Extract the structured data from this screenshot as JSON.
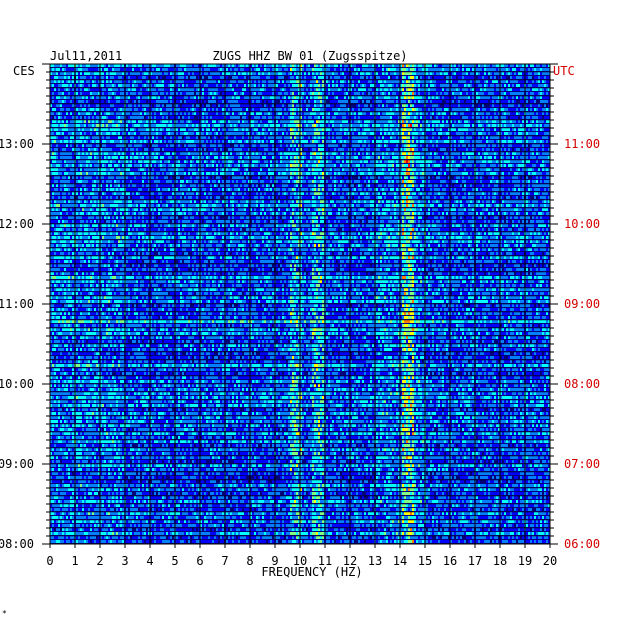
{
  "chart_data": {
    "type": "heatmap",
    "date": "Jul11,2011",
    "title": "ZUGS HHZ BW 01 (Zugsspitze)",
    "xlabel": "FREQUENCY (HZ)",
    "xlim": [
      0,
      20
    ],
    "x_ticks": [
      "0",
      "1",
      "2",
      "3",
      "4",
      "5",
      "6",
      "7",
      "8",
      "9",
      "10",
      "11",
      "12",
      "13",
      "14",
      "15",
      "16",
      "17",
      "18",
      "19",
      "20"
    ],
    "left_axis": {
      "label": "CES",
      "ticks": [
        "13:00",
        "12:00",
        "11:00",
        "10:00",
        "09:00",
        "08:00"
      ]
    },
    "right_axis": {
      "label": "UTC",
      "ticks": [
        "11:00",
        "10:00",
        "09:00",
        "08:00",
        "07:00",
        "06:00"
      ]
    },
    "time_range_utc": [
      "06:00",
      "11:50"
    ],
    "colormap": [
      "#00007a",
      "#0000ff",
      "#0080ff",
      "#00ffff",
      "#80ff80",
      "#ffff00",
      "#ff8000",
      "#ff0000"
    ],
    "grid": true,
    "bright_bands_hz": [
      9.8,
      10.7,
      14.3
    ],
    "footnote": "*"
  }
}
